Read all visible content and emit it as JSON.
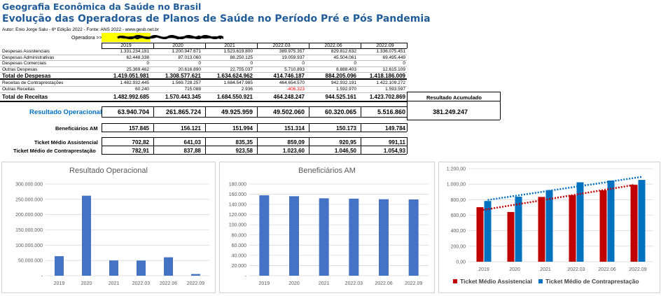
{
  "header": {
    "title1": "Geografia Econômica da Saúde no Brasil",
    "title2": "Evolução das Operadoras de Planos de Saúde no Período Pré e Pós Pandemia",
    "author": "Autor: Enio Jorge Salu - 6ª Edição 2022 - Fonte: ANS 2022 - www.gesb.net.br",
    "operadora_label": "Operadora >>>"
  },
  "years": [
    "2019",
    "2020",
    "2021",
    "2022.03",
    "2022.06",
    "2022.09"
  ],
  "rows": [
    {
      "label": "Despesas Assistenciais",
      "values": [
        "1.331.234.181",
        "1.200.947.671",
        "1.523.619.800",
        "389.975.357",
        "829.812.632",
        "1.336.075.451"
      ]
    },
    {
      "label": "Despesas Administrativas",
      "values": [
        "62.448.338",
        "87.013.060",
        "88.250.125",
        "19.059.937",
        "45.504.061",
        "69.495.449"
      ]
    },
    {
      "label": "Despesas Comerciais",
      "values": [
        "0",
        "0",
        "0",
        "0",
        "0",
        "0"
      ]
    },
    {
      "label": "Outras Despesas",
      "values": [
        "25.369.462",
        "20.616.890",
        "22.755.037",
        "5.710.893",
        "8.888.403",
        "12.615.109"
      ]
    },
    {
      "label": "Total de Despesas",
      "values": [
        "1.419.051.981",
        "1.308.577.621",
        "1.634.624.962",
        "414.746.187",
        "884.205.096",
        "1.418.186.009"
      ],
      "bold": true
    },
    {
      "label": "Receitas de Contraprestações",
      "values": [
        "1.482.932.445",
        "1.569.728.257",
        "1.684.547.985",
        "464.654.570",
        "942.932.191",
        "1.422.109.272"
      ]
    },
    {
      "label": "Outras Receitas",
      "values": [
        "60.240",
        "715.088",
        "2.936",
        "-406.323",
        "1.592.970",
        "1.593.597"
      ]
    },
    {
      "label": "Total de Receitas",
      "values": [
        "1.482.992.685",
        "1.570.443.345",
        "1.684.550.921",
        "464.248.247",
        "944.525.161",
        "1.423.702.869"
      ],
      "bold": true
    }
  ],
  "resultado_acumulado_label": "Resultado Acumulado",
  "resultado_acumulado_value": "381.249.247",
  "resultado_operacional": {
    "label": "Resultado Operacional",
    "values": [
      "63.940.704",
      "261.865.724",
      "49.925.959",
      "49.502.060",
      "60.320.065",
      "5.516.860"
    ]
  },
  "beneficiarios": {
    "label": "Beneficiários AM",
    "values": [
      "157.845",
      "156.121",
      "151.994",
      "151.314",
      "150.173",
      "149.784"
    ]
  },
  "ticket_assistencial": {
    "label": "Ticket Médio Assistencial",
    "values": [
      "702,82",
      "641,03",
      "835,35",
      "859,09",
      "920,95",
      "991,11"
    ]
  },
  "ticket_contraprestacao": {
    "label": "Ticket Médio de Contraprestação",
    "values": [
      "782,91",
      "837,88",
      "923,58",
      "1.023,60",
      "1.046,50",
      "1.054,93"
    ]
  },
  "colors": {
    "title": "#1f5c99",
    "bar": "#4472c4",
    "red": "#c00000",
    "blue": "#0070c0",
    "negative": "#ff0000",
    "highlight": "#ffff00"
  },
  "chart_data": [
    {
      "type": "bar",
      "title": "Resultado Operacional",
      "categories": [
        "2019",
        "2020",
        "2021",
        "2022.03",
        "2022.06",
        "2022.09"
      ],
      "values": [
        63940704,
        261865724,
        49925959,
        49502060,
        60320065,
        5516860
      ],
      "ylim": [
        0,
        300000000
      ],
      "yticks": [
        "-",
        "50.000.000",
        "100.000.000",
        "150.000.000",
        "200.000.000",
        "250.000.000",
        "300.000.000"
      ],
      "grid": true
    },
    {
      "type": "bar",
      "title": "Beneficiários AM",
      "categories": [
        "2019",
        "2020",
        "2021",
        "2022.03",
        "2022.06",
        "2022.09"
      ],
      "values": [
        157845,
        156121,
        151994,
        151314,
        150173,
        149784
      ],
      "ylim": [
        0,
        180000
      ],
      "yticks": [
        "-",
        "20.000",
        "40.000",
        "60.000",
        "80.000",
        "100.000",
        "120.000",
        "140.000",
        "160.000",
        "180.000"
      ],
      "grid": true
    },
    {
      "type": "bar",
      "categories": [
        "2019",
        "2020",
        "2021",
        "2022.03",
        "2022.06",
        "2022.09"
      ],
      "series": [
        {
          "name": "Ticket Médio Assistencial",
          "values": [
            702.82,
            641.03,
            835.35,
            859.09,
            920.95,
            991.11
          ],
          "color": "#c00000"
        },
        {
          "name": "Ticket Médio de Contraprestação",
          "values": [
            782.91,
            837.88,
            923.58,
            1023.6,
            1046.5,
            1054.93
          ],
          "color": "#0070c0"
        }
      ],
      "trendlines": "linear, dotted, one per series",
      "ylim": [
        0,
        1200
      ],
      "yticks": [
        "0,00",
        "200,00",
        "400,00",
        "600,00",
        "800,00",
        "1.000,00",
        "1.200,00"
      ],
      "legend": "bottom",
      "grid": true
    }
  ]
}
